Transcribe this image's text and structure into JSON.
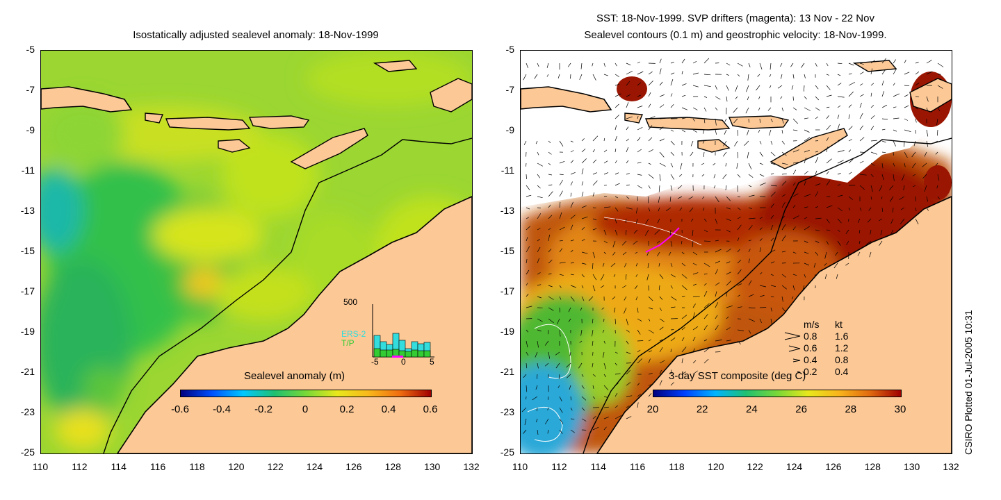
{
  "left_panel": {
    "title": "Isostatically adjusted sealevel anomaly: 18-Nov-1999",
    "colorbar": {
      "label": "Sealevel anomaly (m)",
      "ticks": [
        "-0.6",
        "-0.4",
        "-0.2",
        "0",
        "0.2",
        "0.4",
        "0.6"
      ],
      "range": [
        -0.6,
        0.6
      ]
    },
    "histogram": {
      "y_max_label": "500",
      "x_ticks": [
        "-5",
        "0",
        "5"
      ],
      "legend": [
        {
          "label": "ERS-2",
          "color": "#33dddd"
        },
        {
          "label": "T/P",
          "color": "#33cc33"
        }
      ]
    }
  },
  "right_panel": {
    "title_line1": "SST: 18-Nov-1999. SVP drifters (magenta): 13 Nov - 22 Nov",
    "title_line2": "Sealevel contours (0.1 m) and geostrophic velocity: 18-Nov-1999.",
    "velocity_key": {
      "header_ms": "m/s",
      "header_kt": "kt",
      "rows": [
        {
          "ms": "0.8",
          "kt": "1.6"
        },
        {
          "ms": "0.6",
          "kt": "1.2"
        },
        {
          "ms": "0.4",
          "kt": "0.8"
        },
        {
          "ms": "0.2",
          "kt": "0.4"
        }
      ]
    },
    "colorbar": {
      "label": "3-day SST composite (deg C)",
      "ticks": [
        "20",
        "22",
        "24",
        "26",
        "28",
        "30"
      ],
      "range": [
        20,
        30
      ]
    }
  },
  "axes": {
    "y_ticks": [
      "-5",
      "-7",
      "-9",
      "-11",
      "-13",
      "-15",
      "-17",
      "-19",
      "-21",
      "-23",
      "-25"
    ],
    "x_ticks": [
      "110",
      "112",
      "114",
      "116",
      "118",
      "120",
      "122",
      "124",
      "126",
      "128",
      "130",
      "132"
    ],
    "lon_range": [
      110,
      132
    ],
    "lat_range": [
      -25,
      -5
    ]
  },
  "credit": "CSIRO Plotted 01-Jul-2005 10:31",
  "colors": {
    "land": "#fbc896",
    "coast": "#000000",
    "anomaly_base": "#9bd632",
    "sst_warm": "#a31c04",
    "drifters": "#ff00ff"
  }
}
